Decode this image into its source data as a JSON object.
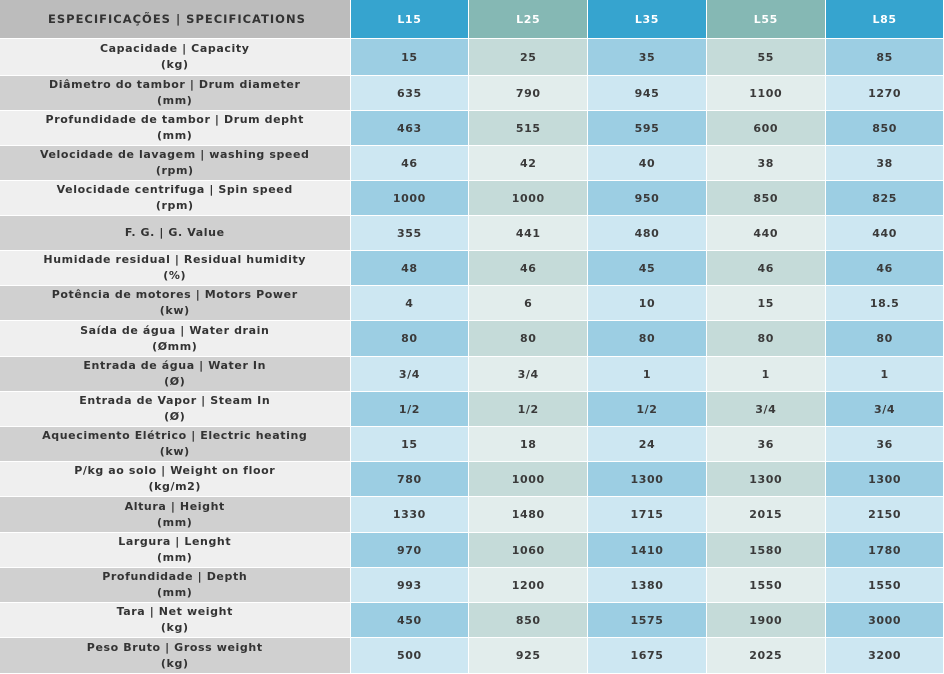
{
  "table": {
    "header_label": "ESPECIFICAÇÕES | SPECIFICATIONS",
    "models": [
      "L15",
      "L25",
      "L35",
      "L55",
      "L85"
    ],
    "rows": [
      {
        "label": "Capacidade | Capacity",
        "unit": "(kg)",
        "values": [
          "15",
          "25",
          "35",
          "55",
          "85"
        ]
      },
      {
        "label": "Diâmetro do tambor | Drum diameter",
        "unit": "(mm)",
        "values": [
          "635",
          "790",
          "945",
          "1100",
          "1270"
        ]
      },
      {
        "label": "Profundidade de tambor | Drum depht",
        "unit": "(mm)",
        "values": [
          "463",
          "515",
          "595",
          "600",
          "850"
        ]
      },
      {
        "label": "Velocidade de lavagem | washing speed",
        "unit": "(rpm)",
        "values": [
          "46",
          "42",
          "40",
          "38",
          "38"
        ]
      },
      {
        "label": "Velocidade centrifuga | Spin speed",
        "unit": "(rpm)",
        "values": [
          "1000",
          "1000",
          "950",
          "850",
          "825"
        ]
      },
      {
        "label": "F. G. | G. Value",
        "unit": "",
        "values": [
          "355",
          "441",
          "480",
          "440",
          "440"
        ]
      },
      {
        "label": "Humidade residual | Residual humidity",
        "unit": "(%)",
        "values": [
          "48",
          "46",
          "45",
          "46",
          "46"
        ]
      },
      {
        "label": "Potência de motores | Motors Power",
        "unit": "(kw)",
        "values": [
          "4",
          "6",
          "10",
          "15",
          "18.5"
        ]
      },
      {
        "label": "Saída de água | Water drain",
        "unit": "(Ømm)",
        "values": [
          "80",
          "80",
          "80",
          "80",
          "80"
        ]
      },
      {
        "label": "Entrada de água | Water In",
        "unit": "(Ø)",
        "values": [
          "3/4",
          "3/4",
          "1",
          "1",
          "1"
        ]
      },
      {
        "label": "Entrada de Vapor | Steam In",
        "unit": "(Ø)",
        "values": [
          "1/2",
          "1/2",
          "1/2",
          "3/4",
          "3/4"
        ]
      },
      {
        "label": "Aquecimento Elétrico | Electric heating",
        "unit": "(kw)",
        "values": [
          "15",
          "18",
          "24",
          "36",
          "36"
        ]
      },
      {
        "label": "P/kg ao solo | Weight on floor",
        "unit": "(kg/m2)",
        "values": [
          "780",
          "1000",
          "1300",
          "1300",
          "1300"
        ]
      },
      {
        "label": "Altura | Height",
        "unit": "(mm)",
        "values": [
          "1330",
          "1480",
          "1715",
          "2015",
          "2150"
        ]
      },
      {
        "label": "Largura | Lenght",
        "unit": "(mm)",
        "values": [
          "970",
          "1060",
          "1410",
          "1580",
          "1780"
        ]
      },
      {
        "label": "Profundidade | Depth",
        "unit": "(mm)",
        "values": [
          "993",
          "1200",
          "1380",
          "1550",
          "1550"
        ]
      },
      {
        "label": "Tara | Net weight",
        "unit": "(kg)",
        "values": [
          "450",
          "850",
          "1575",
          "1900",
          "3000"
        ]
      },
      {
        "label": "Peso Bruto | Gross weight",
        "unit": "(kg)",
        "values": [
          "500",
          "925",
          "1675",
          "2025",
          "3200"
        ]
      }
    ]
  }
}
